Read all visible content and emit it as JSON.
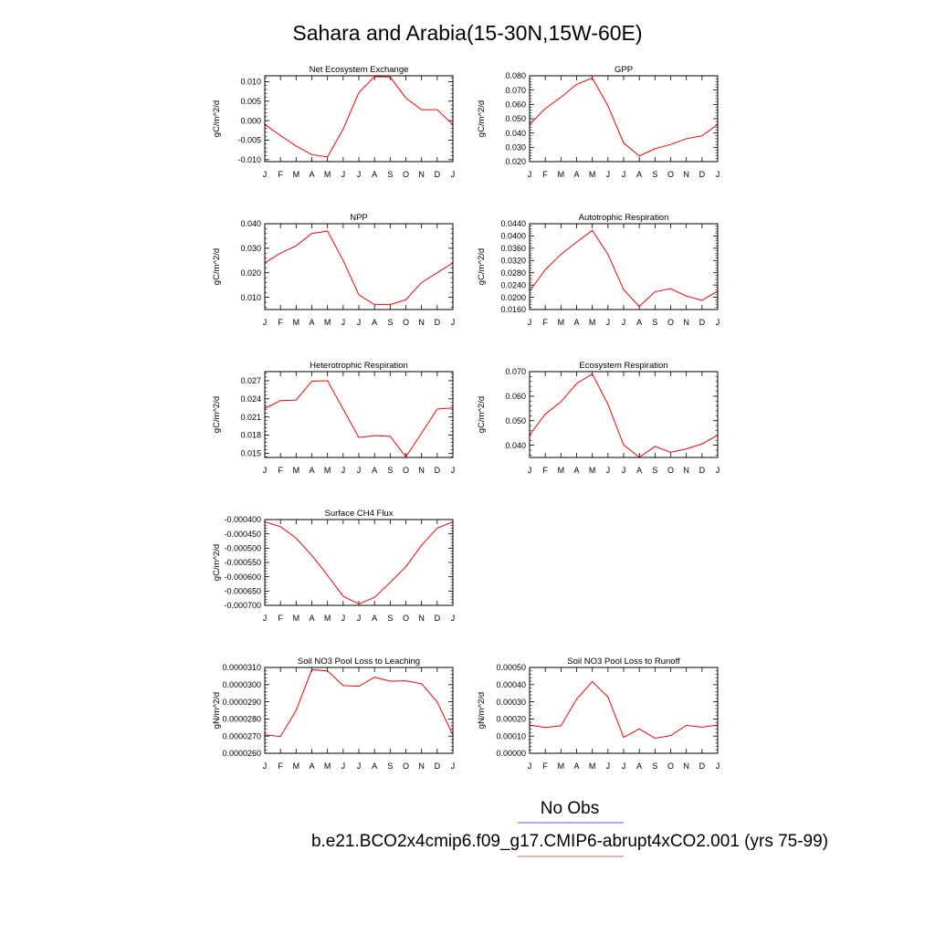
{
  "title": "Sahara and Arabia(15-30N,15W-60E)",
  "months": [
    "J",
    "F",
    "M",
    "A",
    "M",
    "J",
    "J",
    "A",
    "S",
    "O",
    "N",
    "D",
    "J"
  ],
  "legend": {
    "obs_label": "No Obs",
    "obs_color": "#7b7bf5",
    "model_label": "b.e21.BCO2x4cmip6.f09_g17.CMIP6-abrupt4xCO2.001 (yrs 75-99)",
    "model_color": "#f08080"
  },
  "chart_data": [
    {
      "type": "line",
      "title": "Net Ecosystem Exchange",
      "ylabel": "gC/m^2/d",
      "x": [
        "J",
        "F",
        "M",
        "A",
        "M",
        "J",
        "J",
        "A",
        "S",
        "O",
        "N",
        "D",
        "J"
      ],
      "ylim": [
        -0.0105,
        0.0115
      ],
      "yticks": [
        -0.01,
        -0.005,
        0.0,
        0.005,
        0.01
      ],
      "ytick_labels": [
        "-0.010",
        "-0.005",
        "0.000",
        "0.005",
        "0.010"
      ],
      "series": [
        {
          "color": "#ff0000",
          "values": [
            -0.001,
            -0.0038,
            -0.0065,
            -0.0087,
            -0.0093,
            -0.0022,
            0.0072,
            0.0113,
            0.0112,
            0.0058,
            0.0028,
            0.0028,
            -0.001
          ]
        }
      ]
    },
    {
      "type": "line",
      "title": "GPP",
      "ylabel": "gC/m^2/d",
      "x": [
        "J",
        "F",
        "M",
        "A",
        "M",
        "J",
        "J",
        "A",
        "S",
        "O",
        "N",
        "D",
        "J"
      ],
      "ylim": [
        0.02,
        0.08
      ],
      "yticks": [
        0.02,
        0.03,
        0.04,
        0.05,
        0.06,
        0.07,
        0.08
      ],
      "ytick_labels": [
        "0.020",
        "0.030",
        "0.040",
        "0.050",
        "0.060",
        "0.070",
        "0.080"
      ],
      "series": [
        {
          "color": "#ff0000",
          "values": [
            0.046,
            0.057,
            0.065,
            0.074,
            0.0785,
            0.059,
            0.033,
            0.024,
            0.029,
            0.032,
            0.036,
            0.038,
            0.046
          ]
        }
      ]
    },
    {
      "type": "line",
      "title": "NPP",
      "ylabel": "gC/m^2/d",
      "x": [
        "J",
        "F",
        "M",
        "A",
        "M",
        "J",
        "J",
        "A",
        "S",
        "O",
        "N",
        "D",
        "J"
      ],
      "ylim": [
        0.005,
        0.04
      ],
      "yticks": [
        0.01,
        0.02,
        0.03,
        0.04
      ],
      "ytick_labels": [
        "0.010",
        "0.020",
        "0.030",
        "0.040"
      ],
      "series": [
        {
          "color": "#ff0000",
          "values": [
            0.024,
            0.028,
            0.031,
            0.036,
            0.037,
            0.025,
            0.011,
            0.007,
            0.007,
            0.009,
            0.016,
            0.02,
            0.024
          ]
        }
      ]
    },
    {
      "type": "line",
      "title": "Autotrophic Respiration",
      "ylabel": "gC/m^2/d",
      "x": [
        "J",
        "F",
        "M",
        "A",
        "M",
        "J",
        "J",
        "A",
        "S",
        "O",
        "N",
        "D",
        "J"
      ],
      "ylim": [
        0.016,
        0.044
      ],
      "yticks": [
        0.016,
        0.02,
        0.024,
        0.028,
        0.032,
        0.036,
        0.04,
        0.044
      ],
      "ytick_labels": [
        "0.0160",
        "0.0200",
        "0.0240",
        "0.0280",
        "0.0320",
        "0.0360",
        "0.0400",
        "0.0440"
      ],
      "series": [
        {
          "color": "#ff0000",
          "values": [
            0.022,
            0.029,
            0.034,
            0.038,
            0.0418,
            0.034,
            0.0225,
            0.017,
            0.0218,
            0.0228,
            0.0204,
            0.019,
            0.022
          ]
        }
      ]
    },
    {
      "type": "line",
      "title": "Heterotrophic Respiration",
      "ylabel": "gC/m^2/d",
      "x": [
        "J",
        "F",
        "M",
        "A",
        "M",
        "J",
        "J",
        "A",
        "S",
        "O",
        "N",
        "D",
        "J"
      ],
      "ylim": [
        0.0143,
        0.0285
      ],
      "yticks": [
        0.015,
        0.018,
        0.021,
        0.024,
        0.027
      ],
      "ytick_labels": [
        "0.015",
        "0.018",
        "0.021",
        "0.024",
        "0.027"
      ],
      "series": [
        {
          "color": "#ff0000",
          "values": [
            0.0224,
            0.0237,
            0.0238,
            0.0269,
            0.027,
            0.0223,
            0.0176,
            0.0179,
            0.0178,
            0.0144,
            0.0183,
            0.0223,
            0.0225
          ]
        }
      ]
    },
    {
      "type": "line",
      "title": "Ecosystem Respiration",
      "ylabel": "gC/m^2/d",
      "x": [
        "J",
        "F",
        "M",
        "A",
        "M",
        "J",
        "J",
        "A",
        "S",
        "O",
        "N",
        "D",
        "J"
      ],
      "ylim": [
        0.035,
        0.07
      ],
      "yticks": [
        0.04,
        0.05,
        0.06,
        0.07
      ],
      "ytick_labels": [
        "0.040",
        "0.050",
        "0.060",
        "0.070"
      ],
      "series": [
        {
          "color": "#ff0000",
          "values": [
            0.0441,
            0.0527,
            0.0577,
            0.0651,
            0.0691,
            0.0567,
            0.0401,
            0.0351,
            0.0395,
            0.0371,
            0.0385,
            0.0405,
            0.0441
          ]
        }
      ]
    },
    {
      "type": "line",
      "title": "Surface CH4 Flux",
      "ylabel": "gC/m^2/d",
      "x": [
        "J",
        "F",
        "M",
        "A",
        "M",
        "J",
        "J",
        "A",
        "S",
        "O",
        "N",
        "D",
        "J"
      ],
      "ylim": [
        -0.0007,
        -0.0004
      ],
      "yticks": [
        -0.0007,
        -0.00065,
        -0.0006,
        -0.00055,
        -0.0005,
        -0.00045,
        -0.0004
      ],
      "ytick_labels": [
        "-0.000700",
        "-0.000650",
        "-0.000600",
        "-0.000550",
        "-0.000500",
        "-0.000450",
        "-0.000400"
      ],
      "series": [
        {
          "color": "#ff0000",
          "values": [
            -0.000408,
            -0.000425,
            -0.000465,
            -0.000525,
            -0.000595,
            -0.000668,
            -0.000695,
            -0.000672,
            -0.00062,
            -0.000565,
            -0.00049,
            -0.00043,
            -0.000408
          ]
        }
      ]
    },
    {
      "type": "line",
      "title": "Soil NO3 Pool Loss to Leaching",
      "ylabel": "gN/m^2/d",
      "x": [
        "J",
        "F",
        "M",
        "A",
        "M",
        "J",
        "J",
        "A",
        "S",
        "O",
        "N",
        "D",
        "J"
      ],
      "ylim": [
        2.6e-05,
        3.1e-05
      ],
      "yticks": [
        2.6e-05,
        2.7e-05,
        2.8e-05,
        2.9e-05,
        3e-05,
        3.1e-05
      ],
      "ytick_labels": [
        "0.0000260",
        "0.0000270",
        "0.0000280",
        "0.0000290",
        "0.0000300",
        "0.0000310"
      ],
      "series": [
        {
          "color": "#ff0000",
          "values": [
            2.707e-05,
            2.698e-05,
            2.85e-05,
            3.087e-05,
            3.08e-05,
            2.995e-05,
            2.99e-05,
            3.043e-05,
            3.02e-05,
            3.022e-05,
            3.005e-05,
            2.9e-05,
            2.707e-05
          ]
        }
      ]
    },
    {
      "type": "line",
      "title": "Soil NO3 Pool Loss to Runoff",
      "ylabel": "gN/m^2/d",
      "x": [
        "J",
        "F",
        "M",
        "A",
        "M",
        "J",
        "J",
        "A",
        "S",
        "O",
        "N",
        "D",
        "J"
      ],
      "ylim": [
        0.0,
        0.0005
      ],
      "yticks": [
        0.0,
        0.0001,
        0.0002,
        0.0003,
        0.0004,
        0.0005
      ],
      "ytick_labels": [
        "0.00000",
        "0.00010",
        "0.00020",
        "0.00030",
        "0.00040",
        "0.00050"
      ],
      "series": [
        {
          "color": "#ff0000",
          "values": [
            0.000165,
            0.00015,
            0.00016,
            0.000315,
            0.000418,
            0.000328,
            9.3e-05,
            0.000142,
            8.8e-05,
            0.000103,
            0.000163,
            0.000152,
            0.000165
          ]
        }
      ]
    }
  ]
}
